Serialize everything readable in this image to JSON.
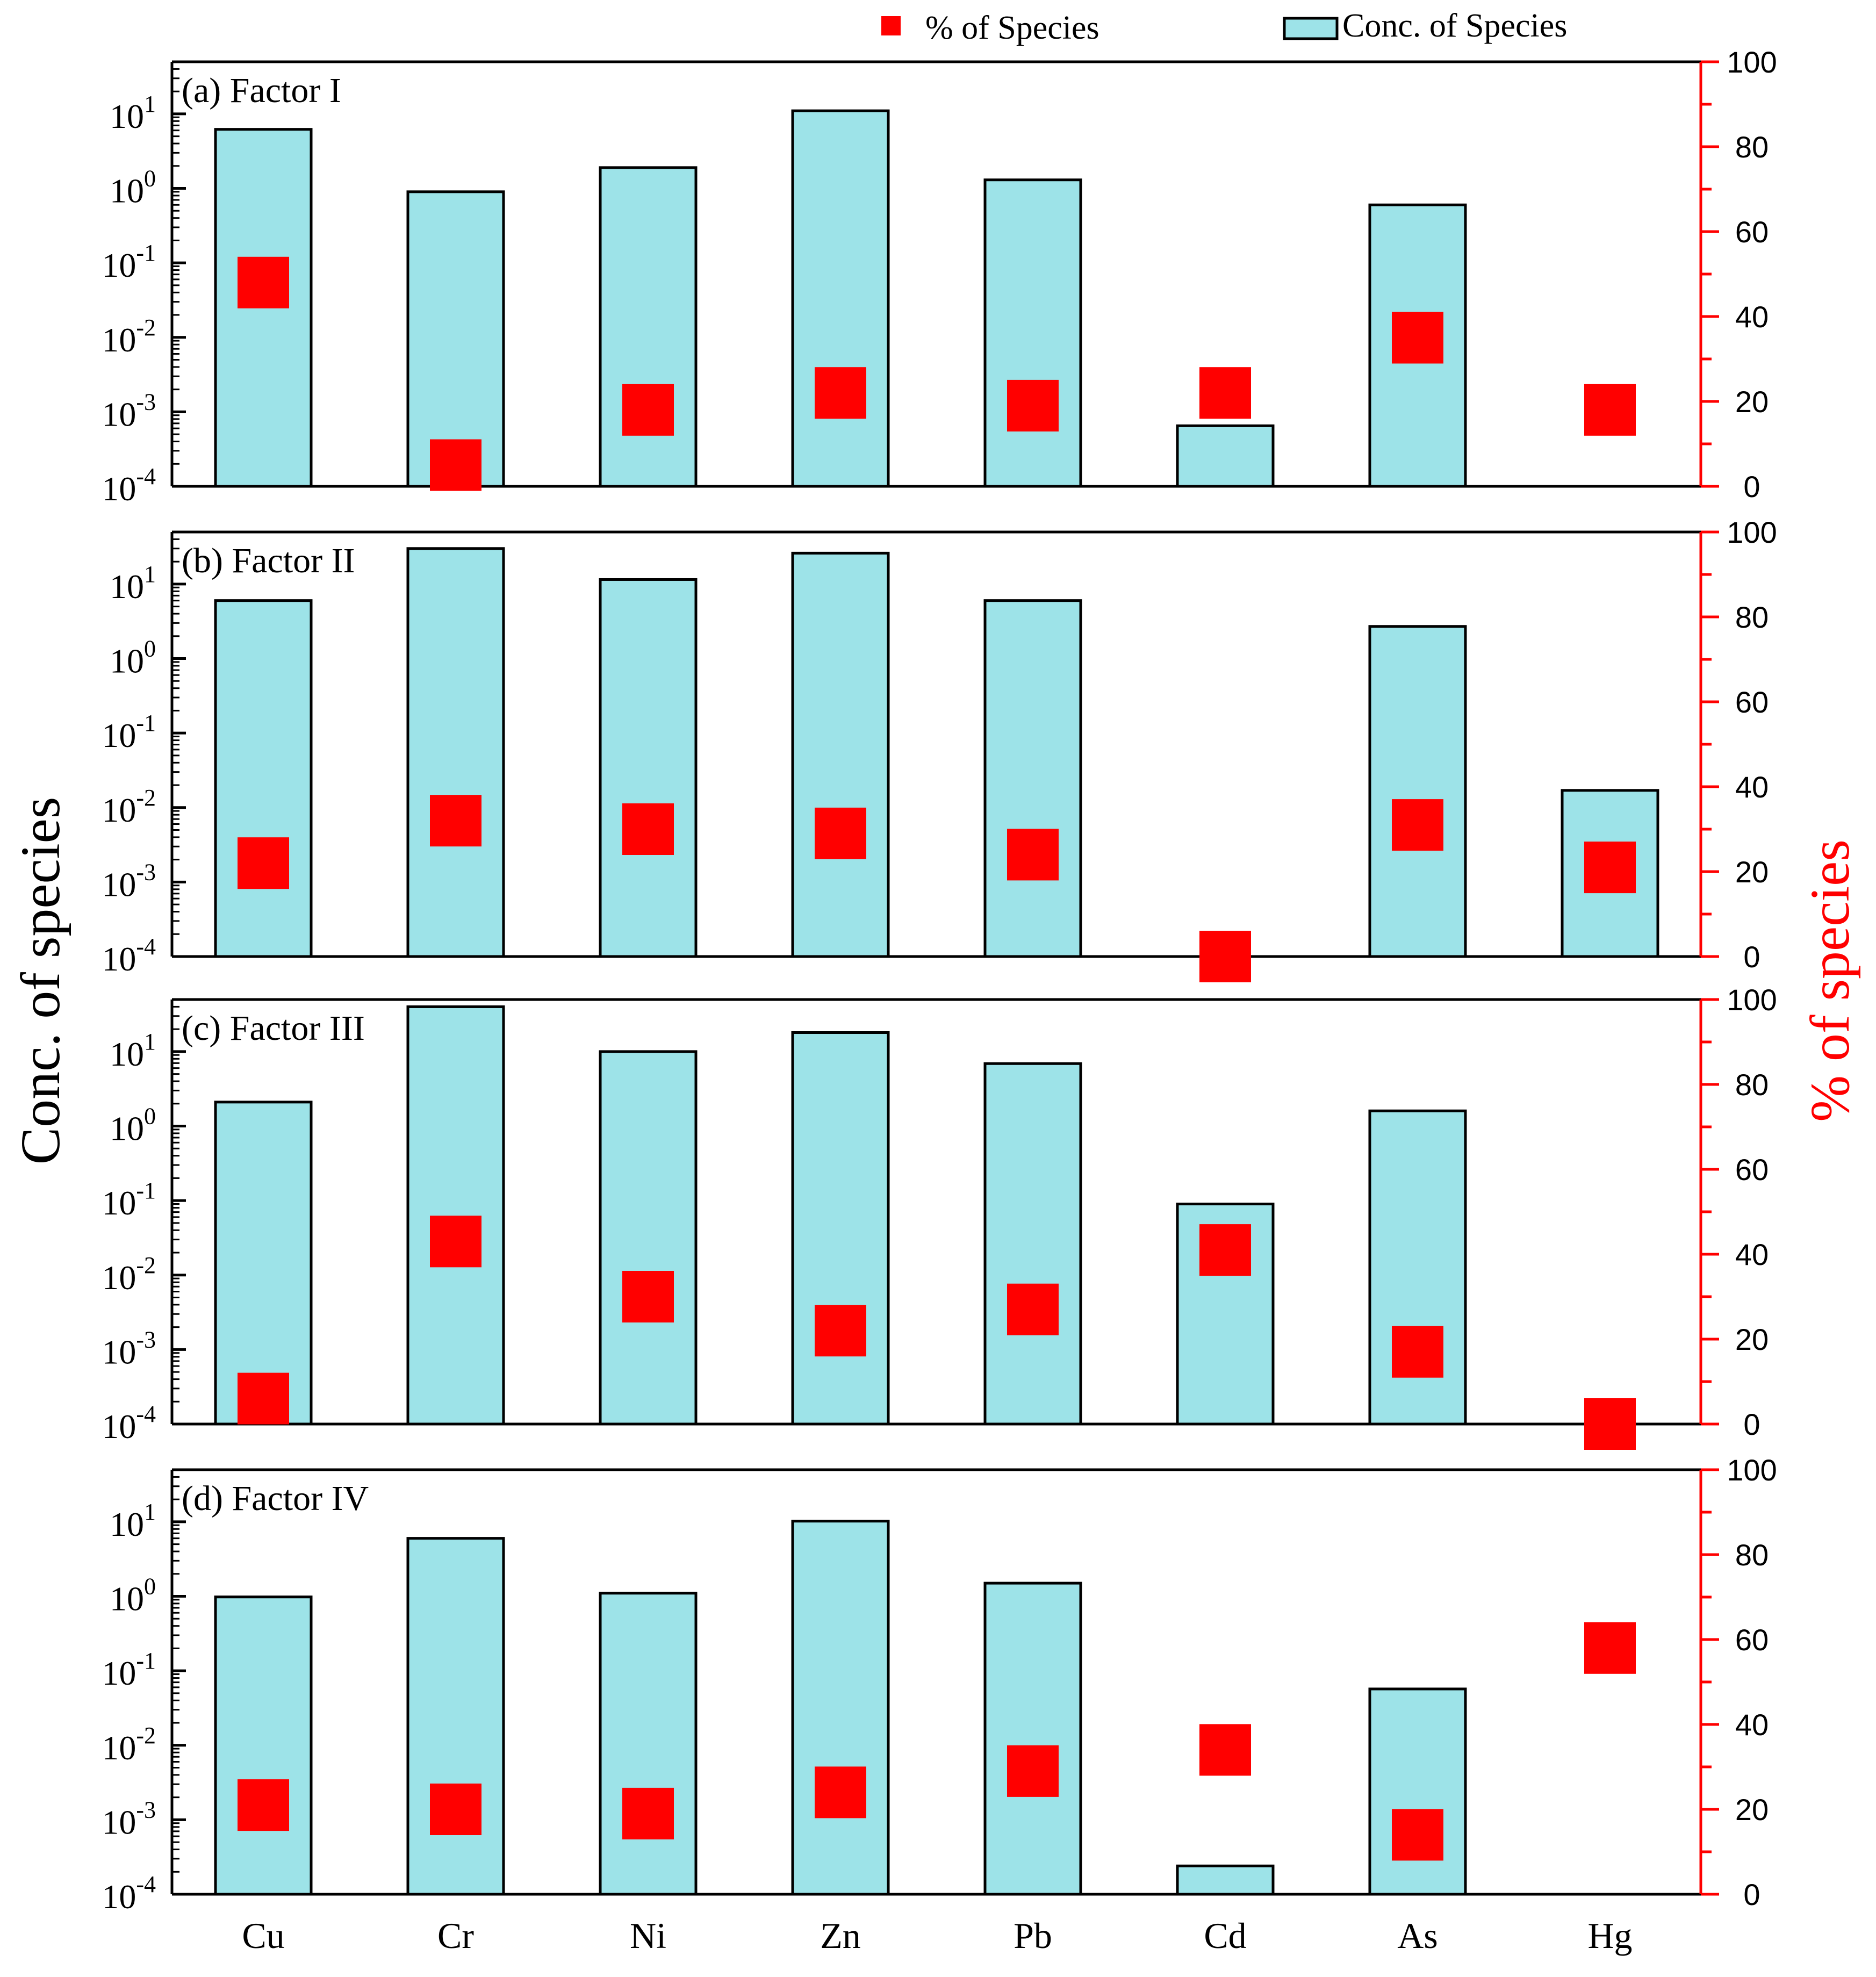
{
  "chart_data": {
    "type": "bar",
    "legend": {
      "position": "top-right",
      "marker_label": "% of Species",
      "bar_label": "Conc. of Species"
    },
    "ylabel_left": "Conc. of species",
    "ylabel_right": "% of species",
    "categories": [
      "Cu",
      "Cr",
      "Ni",
      "Zn",
      "Pb",
      "Cd",
      "As",
      "Hg"
    ],
    "y_left": {
      "scale": "log",
      "ylim": [
        0.0001,
        50
      ],
      "ticks": [
        {
          "base": "10",
          "exp": "-4",
          "value": 0.0001
        },
        {
          "base": "10",
          "exp": "-3",
          "value": 0.001
        },
        {
          "base": "10",
          "exp": "-2",
          "value": 0.01
        },
        {
          "base": "10",
          "exp": "-1",
          "value": 0.1
        },
        {
          "base": "10",
          "exp": "0",
          "value": 1
        },
        {
          "base": "10",
          "exp": "1",
          "value": 10
        }
      ]
    },
    "y_right": {
      "ylim": [
        0,
        100
      ],
      "ticks": [
        "0",
        "20",
        "40",
        "60",
        "80",
        "100"
      ]
    },
    "colors": {
      "bar_fill": "#9de3e8",
      "bar_edge": "#000000",
      "marker": "#ff0000",
      "right_axis": "#ff0000"
    },
    "panels": [
      {
        "title": "(a) Factor I",
        "concentration": [
          6.2,
          0.9,
          1.9,
          11.0,
          1.3,
          0.00065,
          0.6,
          null
        ],
        "percent": [
          48,
          5,
          18,
          22,
          19,
          22,
          35,
          18
        ]
      },
      {
        "title": "(b) Factor II",
        "concentration": [
          6.0,
          30,
          11.5,
          26,
          6.0,
          null,
          2.7,
          0.017
        ],
        "percent": [
          22,
          32,
          30,
          29,
          24,
          0,
          31,
          21
        ]
      },
      {
        "title": "(c) Factor III",
        "concentration": [
          2.1,
          40,
          10.0,
          18,
          6.9,
          0.09,
          1.6,
          null
        ],
        "percent": [
          6,
          43,
          30,
          22,
          27,
          41,
          17,
          0
        ]
      },
      {
        "title": "(d) Factor IV",
        "concentration": [
          0.98,
          6.0,
          1.1,
          10.2,
          1.5,
          0.00024,
          0.057,
          null
        ],
        "percent": [
          21,
          20,
          19,
          24,
          29,
          34,
          14,
          58
        ]
      }
    ]
  }
}
